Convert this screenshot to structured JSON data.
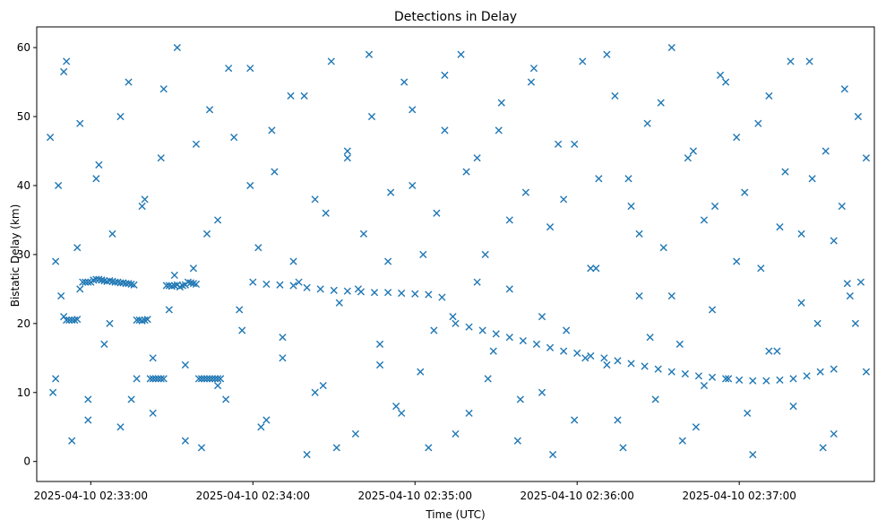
{
  "chart_data": {
    "type": "scatter",
    "title": "Detections in Delay",
    "xlabel": "Time (UTC)",
    "ylabel": "Bistatic Delay (km)",
    "x_unit": "HH:MM:SS on 2025-04-10",
    "xlim": [
      "02:32:40",
      "02:37:50"
    ],
    "ylim": [
      -2.9,
      63
    ],
    "x_ticks": [
      {
        "value": "02:33:00",
        "label": "2025-04-10 02:33:00"
      },
      {
        "value": "02:34:00",
        "label": "2025-04-10 02:34:00"
      },
      {
        "value": "02:35:00",
        "label": "2025-04-10 02:35:00"
      },
      {
        "value": "02:36:00",
        "label": "2025-04-10 02:36:00"
      },
      {
        "value": "02:37:00",
        "label": "2025-04-10 02:37:00"
      }
    ],
    "y_ticks": [
      0,
      10,
      20,
      30,
      40,
      50,
      60
    ],
    "grid": false,
    "legend": "none",
    "marker": "x",
    "color": "#1f77b4",
    "series": [
      {
        "x": [
          "02:32:45",
          "02:32:46",
          "02:32:47",
          "02:32:48",
          "02:32:49",
          "02:32:50",
          "02:32:51",
          "02:32:52",
          "02:32:53",
          "02:32:54",
          "02:32:55",
          "02:32:56",
          "02:32:57",
          "02:32:58",
          "02:32:59",
          "02:33:00",
          "02:33:01",
          "02:33:02",
          "02:33:03",
          "02:33:04",
          "02:33:05",
          "02:33:06",
          "02:33:07",
          "02:33:08",
          "02:33:09",
          "02:33:10",
          "02:33:11",
          "02:33:12",
          "02:33:13",
          "02:33:14",
          "02:33:15",
          "02:33:16",
          "02:33:17",
          "02:33:18",
          "02:33:19",
          "02:33:20",
          "02:33:21",
          "02:33:22",
          "02:33:23",
          "02:33:24",
          "02:33:25",
          "02:33:26",
          "02:33:27",
          "02:33:28",
          "02:33:29",
          "02:33:30",
          "02:33:31",
          "02:33:32",
          "02:33:33",
          "02:33:34",
          "02:33:35",
          "02:33:36",
          "02:33:37",
          "02:33:38",
          "02:33:39",
          "02:33:40",
          "02:33:41",
          "02:33:42",
          "02:33:43",
          "02:33:44",
          "02:33:45",
          "02:33:46",
          "02:33:47",
          "02:33:48"
        ],
        "y": [
          47,
          10,
          29,
          40,
          24,
          21,
          20.5,
          20.5,
          20.5,
          20.5,
          20.6,
          25,
          26,
          26,
          26,
          26,
          26.3,
          26.4,
          26.4,
          26.3,
          26.2,
          26.1,
          26.2,
          26.1,
          26.0,
          26.0,
          25.9,
          25.9,
          25.8,
          25.8,
          25.7,
          25.6,
          20.5,
          20.5,
          20.4,
          20.5,
          20.6,
          12,
          12,
          12,
          12,
          12,
          12,
          25.5,
          25.5,
          25.4,
          25.5,
          25.6,
          25.3,
          25.5,
          25.6,
          26.0,
          25.9,
          25.8,
          25.7,
          12,
          12,
          12,
          12,
          12,
          12,
          12,
          12,
          12
        ]
      },
      {
        "x": [
          "02:34:00",
          "02:34:05",
          "02:34:10",
          "02:34:15",
          "02:34:20",
          "02:34:25",
          "02:34:30",
          "02:34:35",
          "02:34:40",
          "02:34:45",
          "02:34:50",
          "02:34:55",
          "02:35:00",
          "02:35:05",
          "02:35:10",
          "02:35:15",
          "02:35:20",
          "02:35:25",
          "02:35:30",
          "02:35:35",
          "02:35:40",
          "02:35:45",
          "02:35:50",
          "02:35:55",
          "02:36:00",
          "02:36:05",
          "02:36:10",
          "02:36:15",
          "02:36:20",
          "02:36:25",
          "02:36:30",
          "02:36:35",
          "02:36:40",
          "02:36:45",
          "02:36:50",
          "02:36:55",
          "02:37:00",
          "02:37:05",
          "02:37:10",
          "02:37:15",
          "02:37:20",
          "02:37:25",
          "02:37:30",
          "02:37:35",
          "02:37:40",
          "02:37:45"
        ],
        "y": [
          26,
          25.7,
          25.6,
          25.5,
          25.2,
          25.0,
          24.8,
          24.7,
          24.6,
          24.5,
          24.5,
          24.4,
          24.3,
          24.2,
          23.8,
          20.0,
          19.5,
          19.0,
          18.5,
          18.0,
          17.5,
          17.0,
          16.5,
          16.0,
          15.7,
          15.3,
          15.0,
          14.6,
          14.2,
          13.8,
          13.4,
          13.0,
          12.7,
          12.4,
          12.2,
          12.0,
          11.8,
          11.7,
          11.7,
          11.8,
          12.0,
          12.4,
          13.0,
          13.4,
          25.8,
          26.0
        ]
      },
      {
        "x": [
          "02:32:50",
          "02:32:53",
          "02:32:56",
          "02:32:59",
          "02:33:02",
          "02:33:05",
          "02:33:08",
          "02:33:11",
          "02:33:14",
          "02:33:17",
          "02:33:20",
          "02:33:23",
          "02:33:26",
          "02:33:29",
          "02:33:32",
          "02:33:35",
          "02:33:38",
          "02:33:41",
          "02:33:44",
          "02:33:47",
          "02:33:50",
          "02:33:53",
          "02:33:56",
          "02:33:59",
          "02:34:02",
          "02:34:05",
          "02:34:08",
          "02:34:11",
          "02:34:14",
          "02:34:17",
          "02:34:20",
          "02:34:23",
          "02:34:26",
          "02:34:29",
          "02:34:32",
          "02:34:35",
          "02:34:38",
          "02:34:41",
          "02:34:44",
          "02:34:47",
          "02:34:50",
          "02:34:53",
          "02:34:56",
          "02:34:59",
          "02:35:02",
          "02:35:05",
          "02:35:08",
          "02:35:11",
          "02:35:14",
          "02:35:17",
          "02:35:20",
          "02:35:23",
          "02:35:26",
          "02:35:29",
          "02:35:32",
          "02:35:35",
          "02:35:38",
          "02:35:41",
          "02:35:44",
          "02:35:47",
          "02:35:50",
          "02:35:53",
          "02:35:56",
          "02:35:59",
          "02:36:02",
          "02:36:05",
          "02:36:08",
          "02:36:11",
          "02:36:14",
          "02:36:17",
          "02:36:20",
          "02:36:23",
          "02:36:26",
          "02:36:29",
          "02:36:32",
          "02:36:35",
          "02:36:38",
          "02:36:41",
          "02:36:44",
          "02:36:47",
          "02:36:50",
          "02:36:53",
          "02:36:56",
          "02:36:59",
          "02:37:02",
          "02:37:05",
          "02:37:08",
          "02:37:11",
          "02:37:14",
          "02:37:17",
          "02:37:20",
          "02:37:23",
          "02:37:26",
          "02:37:29",
          "02:37:32",
          "02:37:35",
          "02:37:38",
          "02:37:41",
          "02:37:44",
          "02:37:47"
        ],
        "y": [
          56.5,
          3,
          49,
          9,
          41,
          17,
          33,
          5,
          55,
          12,
          38,
          7,
          44,
          22,
          60,
          14,
          28,
          2,
          51,
          35,
          9,
          47,
          19,
          57,
          31,
          6,
          42,
          15,
          53,
          26,
          1,
          38,
          11,
          58,
          23,
          45,
          4,
          33,
          50,
          17,
          29,
          8,
          55,
          40,
          13,
          2,
          36,
          48,
          21,
          59,
          7,
          44,
          30,
          16,
          52,
          25,
          3,
          39,
          57,
          10,
          34,
          46,
          19,
          6,
          58,
          28,
          41,
          14,
          53,
          2,
          37,
          24,
          49,
          9,
          31,
          60,
          17,
          44,
          5,
          35,
          22,
          56,
          12,
          47,
          39,
          1,
          28,
          53,
          16,
          42,
          8,
          33,
          58,
          20,
          45,
          4,
          37,
          24,
          50,
          13
        ]
      },
      {
        "x": [
          "02:32:47",
          "02:32:51",
          "02:32:55",
          "02:32:59",
          "02:33:03",
          "02:33:07",
          "02:33:11",
          "02:33:15",
          "02:33:19",
          "02:33:23",
          "02:33:27",
          "02:33:31",
          "02:33:35",
          "02:33:39",
          "02:33:43",
          "02:33:47",
          "02:33:51",
          "02:33:55",
          "02:33:59",
          "02:34:03",
          "02:34:07",
          "02:34:11",
          "02:34:15",
          "02:34:19",
          "02:34:23",
          "02:34:27",
          "02:34:31",
          "02:34:35",
          "02:34:39",
          "02:34:43",
          "02:34:47",
          "02:34:51",
          "02:34:55",
          "02:34:59",
          "02:35:03",
          "02:35:07",
          "02:35:11",
          "02:35:15",
          "02:35:19",
          "02:35:23",
          "02:35:27",
          "02:35:31",
          "02:35:35",
          "02:35:39",
          "02:35:43",
          "02:35:47",
          "02:35:51",
          "02:35:55",
          "02:35:59",
          "02:36:03",
          "02:36:07",
          "02:36:11",
          "02:36:15",
          "02:36:19",
          "02:36:23",
          "02:36:27",
          "02:36:31",
          "02:36:35",
          "02:36:39",
          "02:36:43",
          "02:36:47",
          "02:36:51",
          "02:36:55",
          "02:36:59",
          "02:37:03",
          "02:37:07",
          "02:37:11",
          "02:37:15",
          "02:37:19",
          "02:37:23",
          "02:37:27",
          "02:37:31",
          "02:37:35",
          "02:37:39",
          "02:37:43",
          "02:37:47"
        ],
        "y": [
          12,
          58,
          31,
          6,
          43,
          20,
          50,
          9,
          37,
          15,
          54,
          27,
          3,
          46,
          33,
          11,
          57,
          22,
          40,
          5,
          48,
          18,
          29,
          53,
          10,
          36,
          2,
          44,
          25,
          59,
          14,
          39,
          7,
          51,
          30,
          19,
          56,
          4,
          42,
          26,
          12,
          48,
          35,
          9,
          55,
          21,
          1,
          38,
          46,
          15,
          28,
          59,
          6,
          41,
          33,
          18,
          52,
          24,
          3,
          45,
          11,
          37,
          55,
          29,
          7,
          49,
          16,
          34,
          58,
          23,
          41,
          2,
          32,
          54,
          20,
          44
        ]
      }
    ]
  }
}
